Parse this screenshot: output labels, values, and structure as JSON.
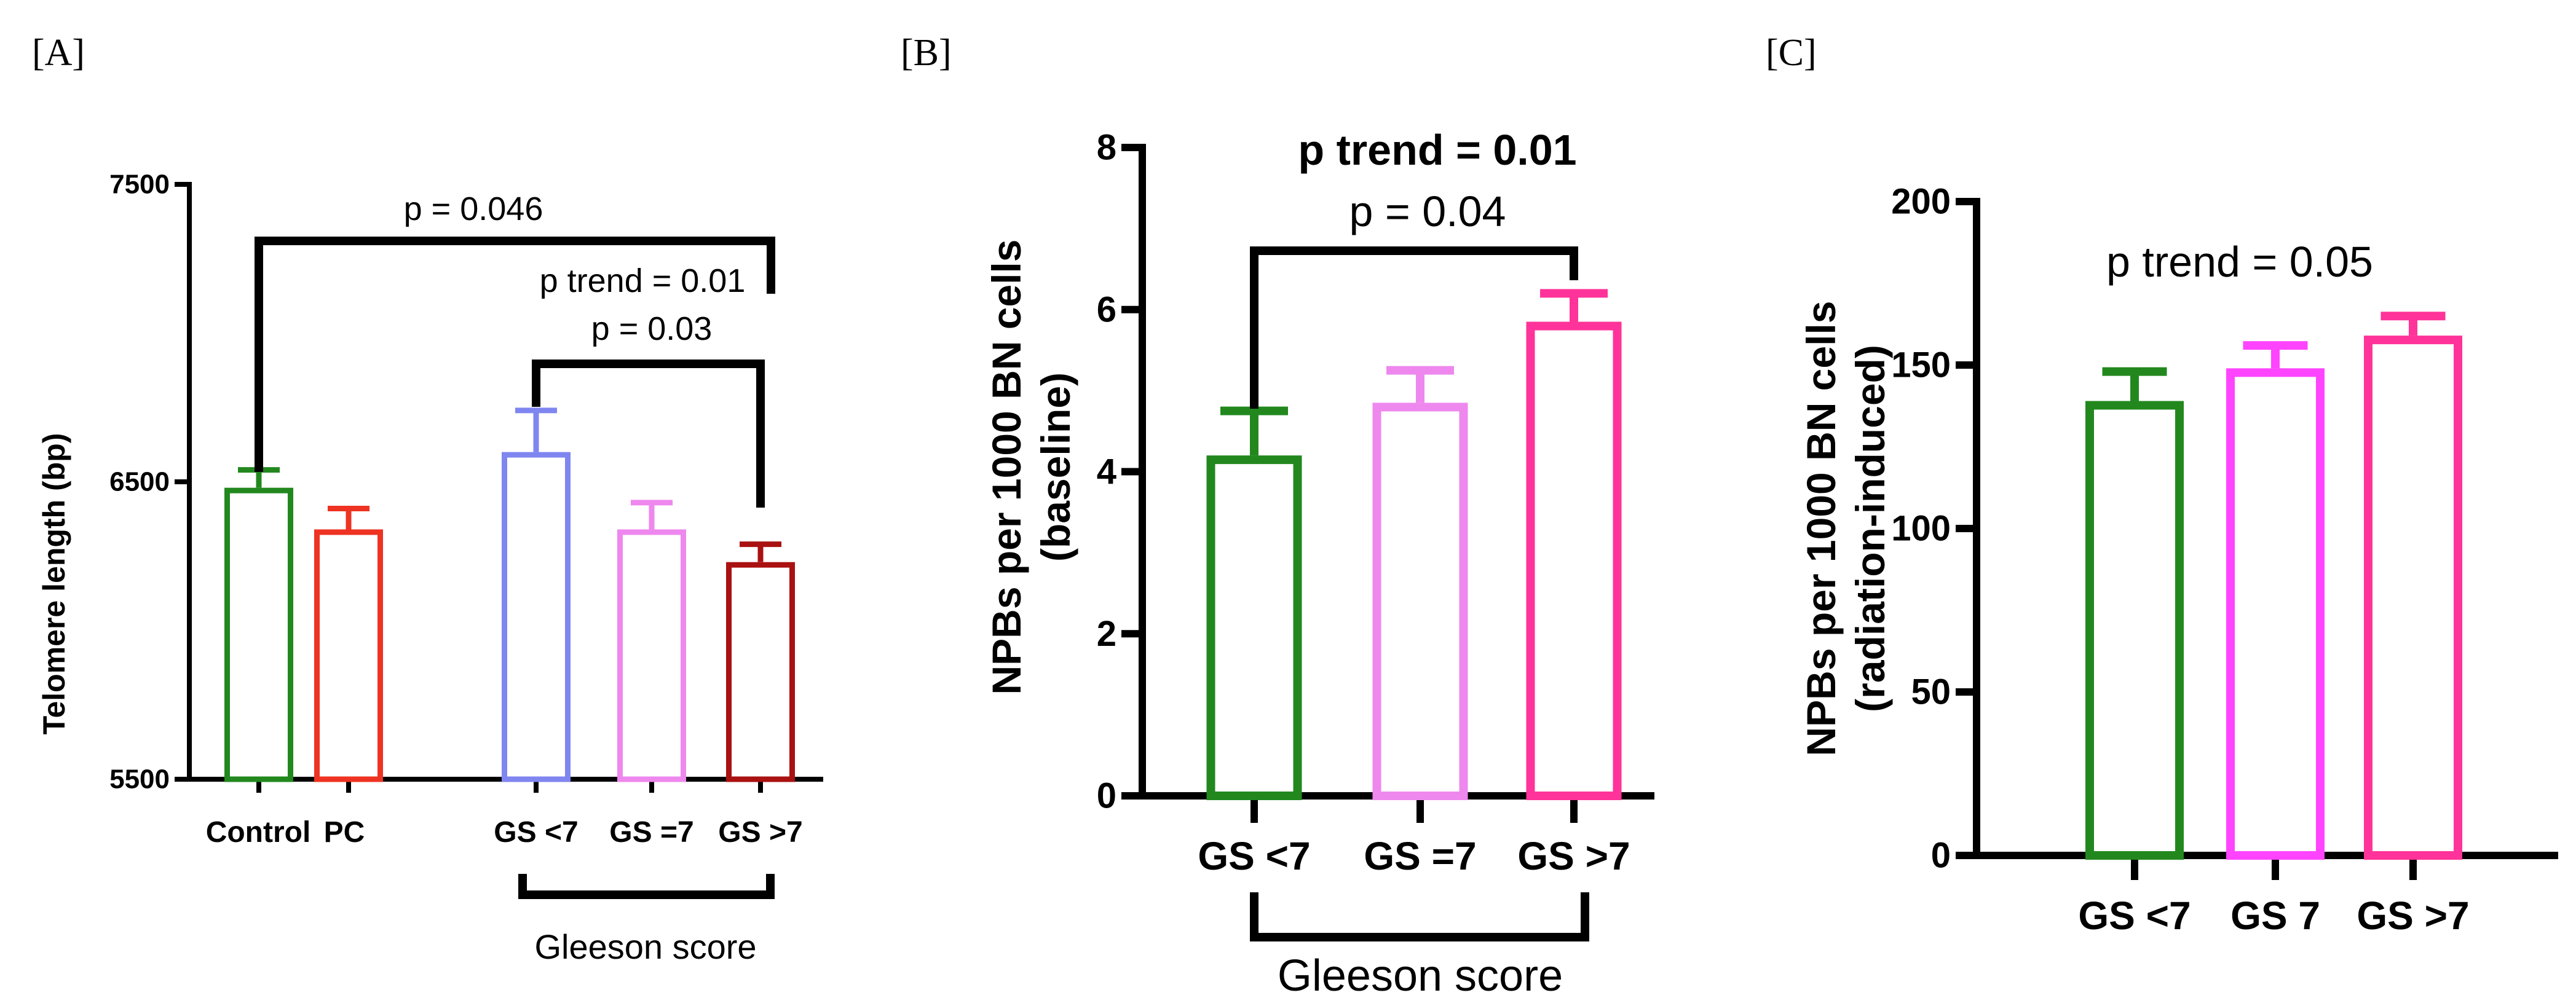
{
  "colors": {
    "green": "#22881e",
    "red": "#ee3322",
    "blue": "#7f86f0",
    "violet": "#ee88ee",
    "darkred": "#aa1111",
    "magenta": "#ff44ff",
    "pink": "#ff3399"
  },
  "chart_data": [
    {
      "type": "bar",
      "panel_label": "[A]",
      "ylabel": "Telomere length (bp)",
      "ylim": [
        5500,
        7500
      ],
      "yticks": [
        5500,
        6500,
        7500
      ],
      "categories": [
        "Control",
        "PC",
        "GS <7",
        "GS =7",
        "GS >7"
      ],
      "values": [
        6480,
        6340,
        6600,
        6340,
        6230
      ],
      "errors": [
        60,
        70,
        140,
        90,
        60
      ],
      "colors": [
        "green",
        "red",
        "blue",
        "violet",
        "darkred"
      ],
      "group_label": "Gleeson score",
      "annotations": [
        "p = 0.046",
        "p trend = 0.01",
        "p = 0.03"
      ]
    },
    {
      "type": "bar",
      "panel_label": "[B]",
      "ylabel": "NPBs per 1000 BN cells (baseline)",
      "ylabel_lines": [
        "NPBs per 1000 BN cells",
        "(baseline)"
      ],
      "ylim": [
        0,
        8
      ],
      "yticks": [
        0,
        2,
        4,
        6,
        8
      ],
      "categories": [
        "GS <7",
        "GS =7",
        "GS >7"
      ],
      "values": [
        4.2,
        4.85,
        5.85
      ],
      "errors": [
        0.55,
        0.4,
        0.35
      ],
      "colors": [
        "green",
        "violet",
        "pink"
      ],
      "group_label": "Gleeson score",
      "annotations": [
        "p trend = 0.01",
        "p = 0.04"
      ]
    },
    {
      "type": "bar",
      "panel_label": "[C]",
      "ylabel": "NPBs per 1000 BN cells (radiation-induced)",
      "ylabel_lines": [
        "NPBs per 1000 BN cells",
        "(radiation-induced)"
      ],
      "ylim": [
        0,
        200
      ],
      "yticks": [
        0,
        50,
        100,
        150,
        200
      ],
      "categories": [
        "GS <7",
        "GS 7",
        "GS >7"
      ],
      "values": [
        139,
        149,
        159
      ],
      "errors": [
        9,
        7,
        6
      ],
      "colors": [
        "green",
        "magenta",
        "pink"
      ],
      "annotations": [
        "p trend = 0.05"
      ]
    }
  ]
}
